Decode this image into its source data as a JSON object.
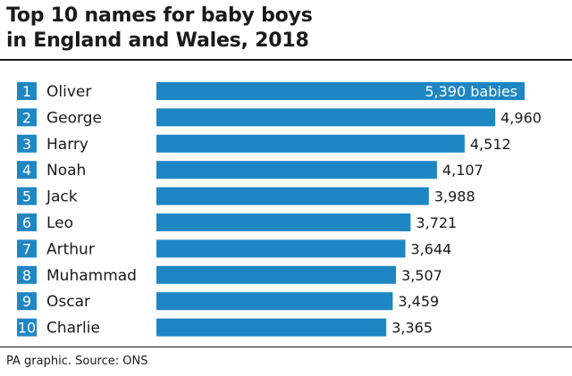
{
  "title_line1": "Top 10 names for baby boys",
  "title_line2": "in England and Wales, 2018",
  "source": "PA graphic. Source: ONS",
  "colors": {
    "bar": "#1f86c4",
    "rank_box": "#1f86c4",
    "text": "#1a1a1a",
    "inside_label": "#ffffff"
  },
  "chart_data": {
    "type": "bar",
    "orientation": "horizontal",
    "ranks": [
      "1",
      "2",
      "3",
      "4",
      "5",
      "6",
      "7",
      "8",
      "9",
      "10"
    ],
    "categories": [
      "Oliver",
      "George",
      "Harry",
      "Noah",
      "Jack",
      "Leo",
      "Arthur",
      "Muhammad",
      "Oscar",
      "Charlie"
    ],
    "values": [
      5390,
      4960,
      4512,
      4107,
      3988,
      3721,
      3644,
      3507,
      3459,
      3365
    ],
    "value_labels": [
      "5,390 babies",
      "4,960",
      "4,512",
      "4,107",
      "3,988",
      "3,721",
      "3,644",
      "3,507",
      "3,459",
      "3,365"
    ],
    "xlim": [
      0,
      5390
    ],
    "grid": false
  }
}
